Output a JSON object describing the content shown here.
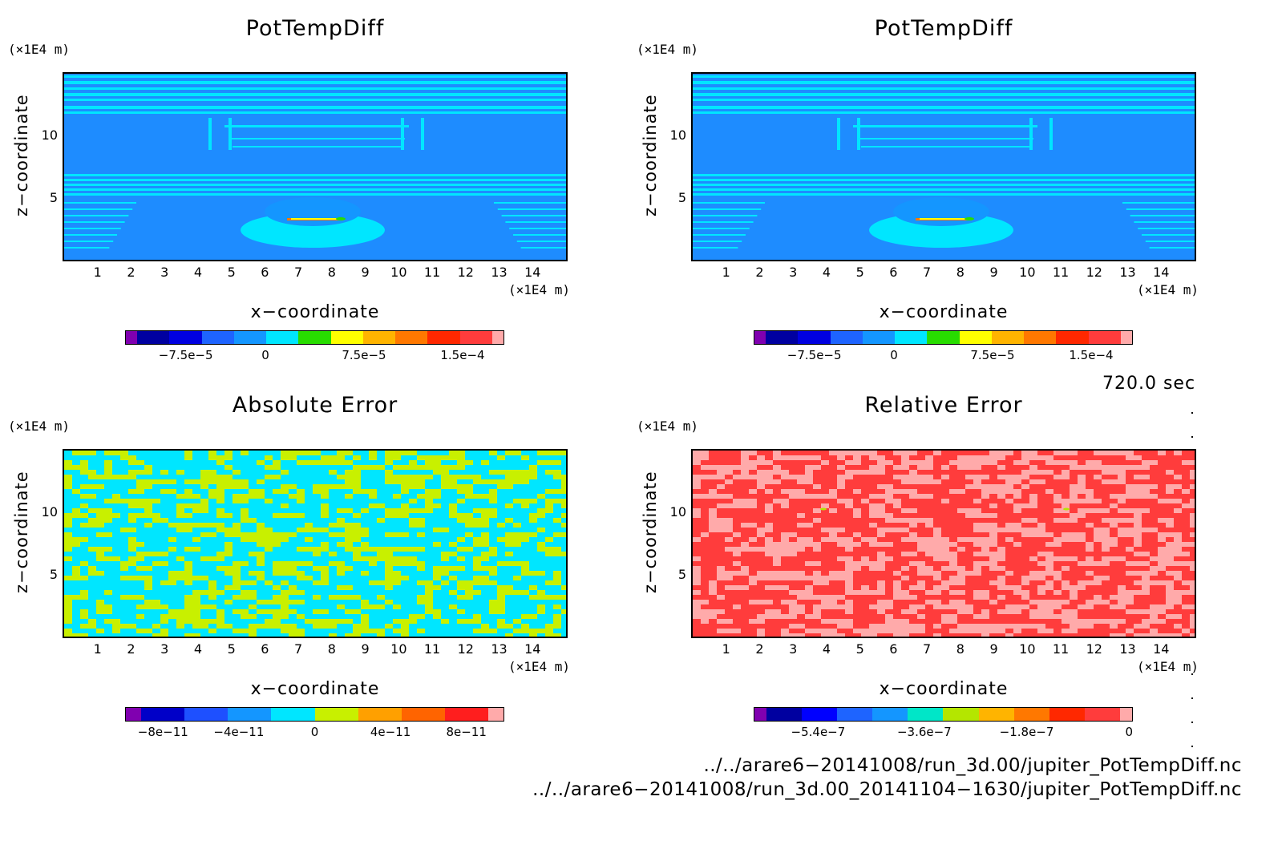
{
  "chart_data": [
    {
      "type": "heatmap",
      "title": "PotTempDiff",
      "xlabel": "x−coordinate",
      "ylabel": "z−coordinate",
      "x_unit": "(×1E4 m)",
      "y_unit": "(×1E4 m)",
      "x_ticks": [
        "1",
        "2",
        "3",
        "4",
        "5",
        "6",
        "7",
        "8",
        "9",
        "10",
        "11",
        "12",
        "13",
        "14"
      ],
      "y_ticks": [
        "10",
        "5"
      ],
      "colorbar_labels": [
        "−7.5e−5",
        "0",
        "7.5e−5",
        "1.5e−4"
      ],
      "colorbar_colors": [
        "#8000b0",
        "#0000a0",
        "#0000e0",
        "#1e64ff",
        "#1496ff",
        "#00e6ff",
        "#28dc00",
        "#ffff00",
        "#ffb400",
        "#ff7800",
        "#ff2800",
        "#ff3c3c",
        "#ffaaaa"
      ]
    },
    {
      "type": "heatmap",
      "title": "PotTempDiff",
      "xlabel": "x−coordinate",
      "ylabel": "z−coordinate",
      "x_unit": "(×1E4 m)",
      "y_unit": "(×1E4 m)",
      "x_ticks": [
        "1",
        "2",
        "3",
        "4",
        "5",
        "6",
        "7",
        "8",
        "9",
        "10",
        "11",
        "12",
        "13",
        "14"
      ],
      "y_ticks": [
        "10",
        "5"
      ],
      "colorbar_labels": [
        "−7.5e−5",
        "0",
        "7.5e−5",
        "1.5e−4"
      ],
      "colorbar_colors": [
        "#8000b0",
        "#0000a0",
        "#0000e0",
        "#1e64ff",
        "#1496ff",
        "#00e6ff",
        "#28dc00",
        "#ffff00",
        "#ffb400",
        "#ff7800",
        "#ff2800",
        "#ff3c3c",
        "#ffaaaa"
      ]
    },
    {
      "type": "heatmap",
      "title": "Absolute Error",
      "xlabel": "x−coordinate",
      "ylabel": "z−coordinate",
      "x_unit": "(×1E4 m)",
      "y_unit": "(×1E4 m)",
      "x_ticks": [
        "1",
        "2",
        "3",
        "4",
        "5",
        "6",
        "7",
        "8",
        "9",
        "10",
        "11",
        "12",
        "13",
        "14"
      ],
      "y_ticks": [
        "10",
        "5"
      ],
      "colorbar_labels": [
        "−8e−11",
        "−4e−11",
        "0",
        "4e−11",
        "8e−11"
      ],
      "colorbar_colors": [
        "#8000b0",
        "#0000c8",
        "#1e50ff",
        "#1496ff",
        "#00e6ff",
        "#c8f000",
        "#ffa000",
        "#ff6400",
        "#ff1e1e",
        "#ffaaaa"
      ]
    },
    {
      "type": "heatmap",
      "title": "Relative Error",
      "xlabel": "x−coordinate",
      "ylabel": "z−coordinate",
      "x_unit": "(×1E4 m)",
      "y_unit": "(×1E4 m)",
      "x_ticks": [
        "1",
        "2",
        "3",
        "4",
        "5",
        "6",
        "7",
        "8",
        "9",
        "10",
        "11",
        "12",
        "13",
        "14"
      ],
      "y_ticks": [
        "10",
        "5"
      ],
      "colorbar_labels": [
        "−5.4e−7",
        "−3.6e−7",
        "−1.8e−7",
        "0"
      ],
      "colorbar_colors": [
        "#8000b0",
        "#0000a0",
        "#0000ff",
        "#1e64ff",
        "#1496ff",
        "#00e6c8",
        "#b4e600",
        "#ffb400",
        "#ff7800",
        "#ff2800",
        "#ff3c3c",
        "#ffaaaa"
      ]
    }
  ],
  "timestamp": "720.0 sec",
  "files": [
    "../../arare6−20141008/run_3d.00/jupiter_PotTempDiff.nc",
    "../../arare6−20141008/run_3d.00_20141104−1630/jupiter_PotTempDiff.nc"
  ]
}
